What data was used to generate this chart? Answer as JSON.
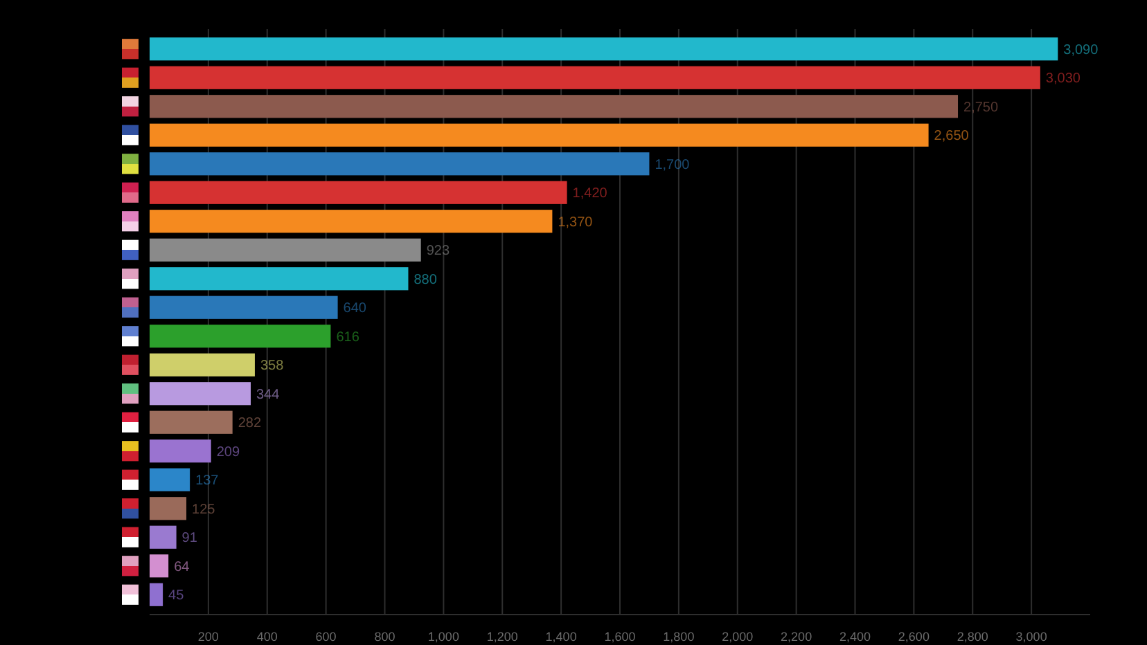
{
  "chart_data": {
    "type": "bar",
    "orientation": "horizontal",
    "categories": [
      null,
      null,
      null,
      null,
      null,
      null,
      null,
      null,
      null,
      null,
      null,
      null,
      null,
      null,
      null,
      null,
      null,
      null,
      null,
      null
    ],
    "values": [
      3090,
      3030,
      2750,
      2650,
      1700,
      1420,
      1370,
      923,
      880,
      640,
      616,
      358,
      344,
      282,
      209,
      137,
      125,
      91,
      64,
      45
    ],
    "value_labels": [
      "3,090",
      "3,030",
      "2,750",
      "2,650",
      "1,700",
      "1,420",
      "1,370",
      "923",
      "880",
      "640",
      "616",
      "358",
      "344",
      "282",
      "209",
      "137",
      "125",
      "91",
      "64",
      "45"
    ],
    "colors": [
      "#22b8cc",
      "#d63232",
      "#8c5a4e",
      "#f58a1f",
      "#2a78b8",
      "#d63232",
      "#f58a1f",
      "#8a8a8a",
      "#22b8cc",
      "#2a78b8",
      "#2ca02c",
      "#cfcf6a",
      "#b89ae0",
      "#9c6e5d",
      "#9a73d0",
      "#2b86c9",
      "#9a6a5a",
      "#9a7ad0",
      "#d38fd0",
      "#8f70d0"
    ],
    "xlim": [
      0,
      3200
    ],
    "xticks": [
      200,
      400,
      600,
      800,
      {
        "value": 1000,
        "label": "1,000"
      },
      {
        "value": 1200,
        "label": "1,200"
      },
      {
        "value": 1400,
        "label": "1,400"
      },
      {
        "value": 1600,
        "label": "1,600"
      },
      {
        "value": 1800,
        "label": "1,800"
      },
      {
        "value": 2000,
        "label": "2,000"
      },
      {
        "value": 2200,
        "label": "2,200"
      },
      {
        "value": 2400,
        "label": "2,400"
      },
      {
        "value": 2600,
        "label": "2,600"
      },
      {
        "value": 2800,
        "label": "2,800"
      },
      {
        "value": 3000,
        "label": "3,000"
      }
    ],
    "grid": "x"
  }
}
